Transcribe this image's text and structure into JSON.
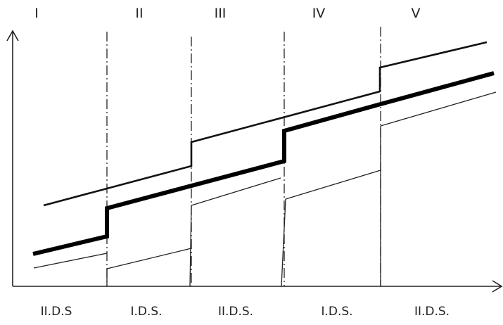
{
  "zones": [
    {
      "numeral": "I",
      "phase": "II.D.S"
    },
    {
      "numeral": "II",
      "phase": "I.D.S."
    },
    {
      "numeral": "III",
      "phase": "II.D.S."
    },
    {
      "numeral": "IV",
      "phase": "I.D.S."
    },
    {
      "numeral": "V",
      "phase": "II.D.S."
    }
  ]
}
